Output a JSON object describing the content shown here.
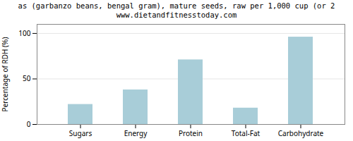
{
  "chart_data": {
    "type": "bar",
    "title": "as (garbanzo beans, bengal gram), mature seeds, raw per 1,000 cup (or 2",
    "subtitle": "www.dietandfitnesstoday.com",
    "categories": [
      "Sugars",
      "Energy",
      "Protein",
      "Total-Fat",
      "Carbohydrate"
    ],
    "values": [
      22,
      38,
      71,
      18,
      96
    ],
    "color": "#a8cdd8",
    "ylabel": "Percentage of RDH (%)",
    "ylim": [
      0,
      110
    ],
    "yticks": [
      0,
      50,
      100
    ],
    "grid": true
  }
}
